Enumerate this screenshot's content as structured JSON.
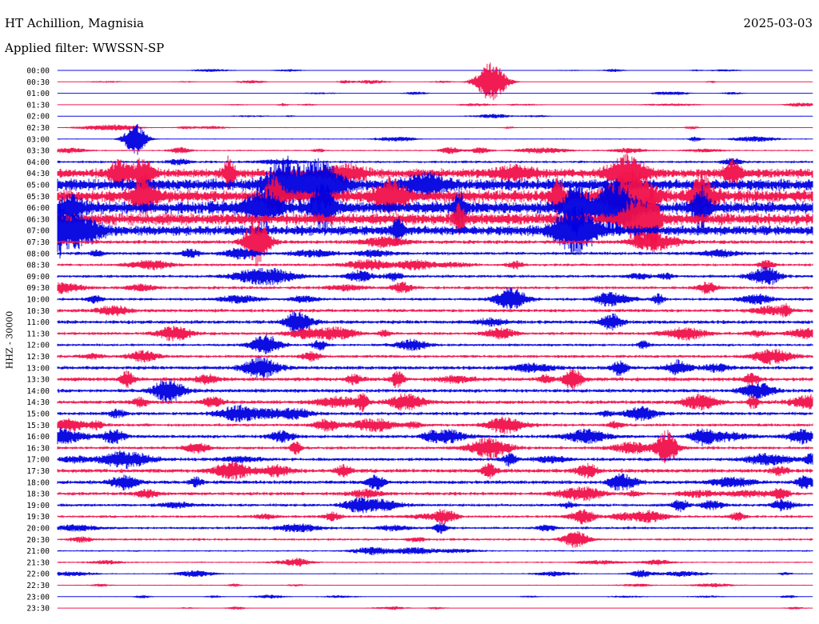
{
  "header": {
    "station": "HT Achillion, Magnisia",
    "date": "2025-03-03",
    "filter": "Applied filter: WWSSN-SP"
  },
  "chart_data": {
    "type": "line",
    "title": "HT Achillion, Magnisia",
    "ylabel": "HHZ - 30000",
    "xlabel": "",
    "trace_times": [
      "00:00",
      "00:30",
      "01:00",
      "01:30",
      "02:00",
      "02:30",
      "03:00",
      "03:30",
      "04:00",
      "04:30",
      "05:00",
      "05:30",
      "06:00",
      "06:30",
      "07:00",
      "07:30",
      "08:00",
      "08:30",
      "09:00",
      "09:30",
      "10:00",
      "10:30",
      "11:00",
      "11:30",
      "12:00",
      "12:30",
      "13:00",
      "13:30",
      "14:00",
      "14:30",
      "15:00",
      "15:30",
      "16:00",
      "16:30",
      "17:00",
      "17:30",
      "18:00",
      "18:30",
      "19:00",
      "19:30",
      "20:00",
      "20:30",
      "21:00",
      "21:30",
      "22:00",
      "22:30",
      "23:00",
      "23:30"
    ],
    "noise_level": [
      0.3,
      0.4,
      0.4,
      0.4,
      0.5,
      0.6,
      0.7,
      0.9,
      1.5,
      5.5,
      7.0,
      7.5,
      7.5,
      7.0,
      6.0,
      2.2,
      2.0,
      1.6,
      1.8,
      1.8,
      1.7,
      2.0,
      2.2,
      1.8,
      1.6,
      1.8,
      2.2,
      2.4,
      2.2,
      2.2,
      2.0,
      1.8,
      2.0,
      1.8,
      2.0,
      2.4,
      2.2,
      2.0,
      1.8,
      1.6,
      1.6,
      1.4,
      1.0,
      0.9,
      0.7,
      0.6,
      0.5,
      0.4
    ],
    "series_colors": [
      "#0000e0",
      "#f0104a"
    ],
    "grid": false
  }
}
